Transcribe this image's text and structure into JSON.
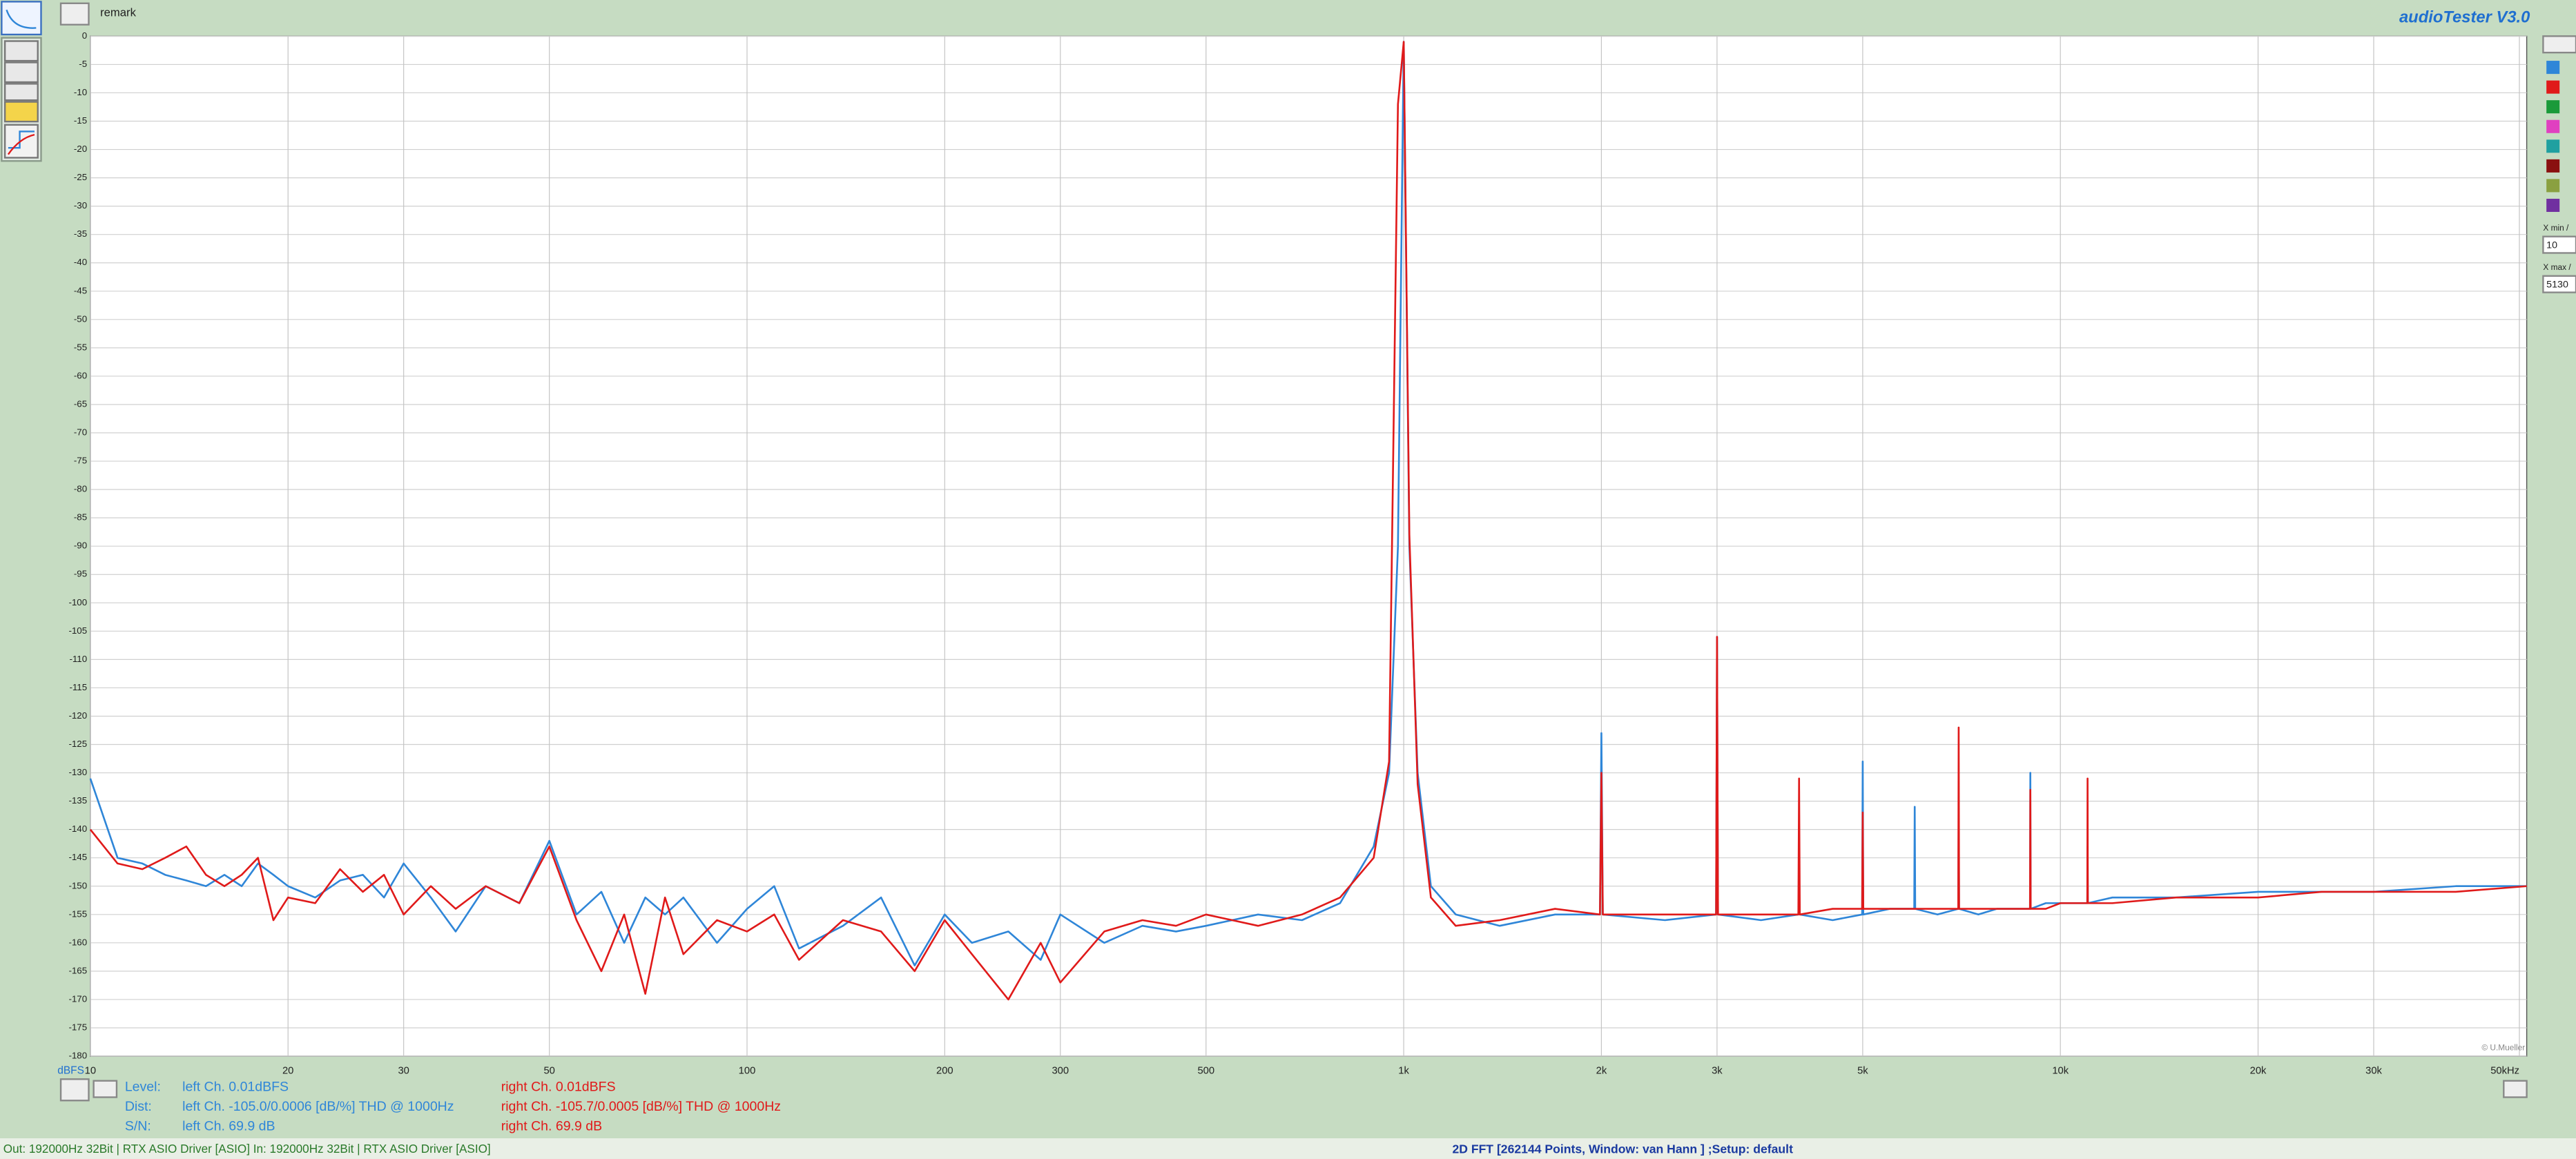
{
  "ui": {
    "remark": "remark",
    "app_title": "audioTester  V3.0",
    "copyright": "© U.Mueller",
    "info": {
      "labels": [
        "Level:",
        "Dist:",
        "S/N:"
      ],
      "left": [
        "left Ch. 0.01dBFS",
        "left Ch. -105.0/0.0006 [dB/%] THD @ 1000Hz",
        "left Ch. 69.9 dB"
      ],
      "right": [
        "right Ch. 0.01dBFS",
        "right Ch. -105.7/0.0005 [dB/%] THD @ 1000Hz",
        "right Ch. 69.9 dB"
      ]
    },
    "status_left": "Out: 192000Hz 32Bit  | RTX ASIO Driver [ASIO]  In: 192000Hz 32Bit  | RTX ASIO Driver [ASIO]",
    "status_center": "2D FFT [262144 Points, Window: van Hann ]  ;Setup:  default",
    "xmin_label": "X min /",
    "xmin": "10",
    "xmax_label": "X max /",
    "xmax": "5130"
  },
  "chart_data": {
    "type": "line",
    "ylabel": "dBFS",
    "log_x": true,
    "grid": true,
    "xlim": [
      10,
      51300
    ],
    "ylim": [
      -180,
      0
    ],
    "xticks": [
      10,
      20,
      30,
      50,
      100,
      200,
      300,
      500,
      {
        "value": 1000,
        "label": "1k"
      },
      {
        "value": 2000,
        "label": "2k"
      },
      {
        "value": 3000,
        "label": "3k"
      },
      {
        "value": 5000,
        "label": "5k"
      },
      {
        "value": 10000,
        "label": "10k"
      },
      {
        "value": 20000,
        "label": "20k"
      },
      {
        "value": 30000,
        "label": "30k"
      },
      {
        "value": 50000,
        "label": "50kHz"
      }
    ],
    "yticks": [
      0,
      -5,
      -10,
      -15,
      -20,
      -25,
      -30,
      -35,
      -40,
      -45,
      -50,
      -55,
      -60,
      -65,
      -70,
      -75,
      -80,
      -85,
      -90,
      -95,
      -100,
      -105,
      -110,
      -115,
      -120,
      -125,
      -130,
      -135,
      -140,
      -145,
      -150,
      -155,
      -160,
      -165,
      -170,
      -175,
      -180
    ],
    "x": [
      10,
      11,
      12,
      13,
      14,
      15,
      16,
      17,
      18,
      19,
      20,
      22,
      24,
      26,
      28,
      30,
      33,
      36,
      40,
      45,
      50,
      55,
      60,
      65,
      70,
      75,
      80,
      90,
      100,
      110,
      120,
      140,
      160,
      180,
      200,
      220,
      250,
      280,
      300,
      350,
      400,
      450,
      500,
      600,
      700,
      800,
      900,
      950,
      980,
      1000,
      1020,
      1050,
      1100,
      1200,
      1400,
      1700,
      1990,
      2000,
      2010,
      2500,
      2990,
      3000,
      3010,
      3500,
      3990,
      4000,
      4010,
      4500,
      4990,
      5000,
      5010,
      5500,
      5990,
      6000,
      6010,
      6500,
      6990,
      7000,
      7010,
      7500,
      8000,
      8990,
      9000,
      9010,
      9500,
      10000,
      10990,
      11000,
      11010,
      12000,
      15000,
      20000,
      25000,
      30000,
      40000,
      51300
    ],
    "series": [
      {
        "name": "left Ch.",
        "color": "#2f86d8",
        "values": [
          -131,
          -145,
          -146,
          -148,
          -149,
          -150,
          -148,
          -150,
          -146,
          -148,
          -150,
          -152,
          -149,
          -148,
          -152,
          -146,
          -152,
          -158,
          -150,
          -153,
          -142,
          -155,
          -151,
          -160,
          -152,
          -155,
          -152,
          -160,
          -154,
          -150,
          -161,
          -157,
          -152,
          -164,
          -155,
          -160,
          -158,
          -163,
          -155,
          -160,
          -157,
          -158,
          -157,
          -155,
          -156,
          -153,
          -143,
          -130,
          -90,
          -1,
          -90,
          -130,
          -150,
          -155,
          -157,
          -155,
          -155,
          -123,
          -155,
          -156,
          -155,
          -106,
          -155,
          -156,
          -155,
          -150,
          -155,
          -156,
          -155,
          -128,
          -155,
          -154,
          -154,
          -136,
          -154,
          -155,
          -154,
          -138,
          -154,
          -155,
          -154,
          -154,
          -130,
          -154,
          -153,
          -153,
          -153,
          -143,
          -153,
          -152,
          -152,
          -151,
          -151,
          -151,
          -150,
          -150
        ]
      },
      {
        "name": "right Ch.",
        "color": "#e01a1a",
        "values": [
          -140,
          -146,
          -147,
          -145,
          -143,
          -148,
          -150,
          -148,
          -145,
          -156,
          -152,
          -153,
          -147,
          -151,
          -148,
          -155,
          -150,
          -154,
          -150,
          -153,
          -143,
          -156,
          -165,
          -155,
          -169,
          -152,
          -162,
          -156,
          -158,
          -155,
          -163,
          -156,
          -158,
          -165,
          -156,
          -162,
          -170,
          -160,
          -167,
          -158,
          -156,
          -157,
          -155,
          -157,
          -155,
          -152,
          -145,
          -128,
          -12,
          -1,
          -88,
          -132,
          -152,
          -157,
          -156,
          -154,
          -155,
          -130,
          -155,
          -155,
          -155,
          -106,
          -155,
          -155,
          -155,
          -131,
          -155,
          -154,
          -154,
          -137,
          -154,
          -154,
          -154,
          -154,
          -154,
          -154,
          -154,
          -122,
          -154,
          -154,
          -154,
          -154,
          -133,
          -154,
          -154,
          -153,
          -153,
          -131,
          -153,
          -153,
          -152,
          -152,
          -151,
          -151,
          -151,
          -150
        ]
      }
    ]
  }
}
